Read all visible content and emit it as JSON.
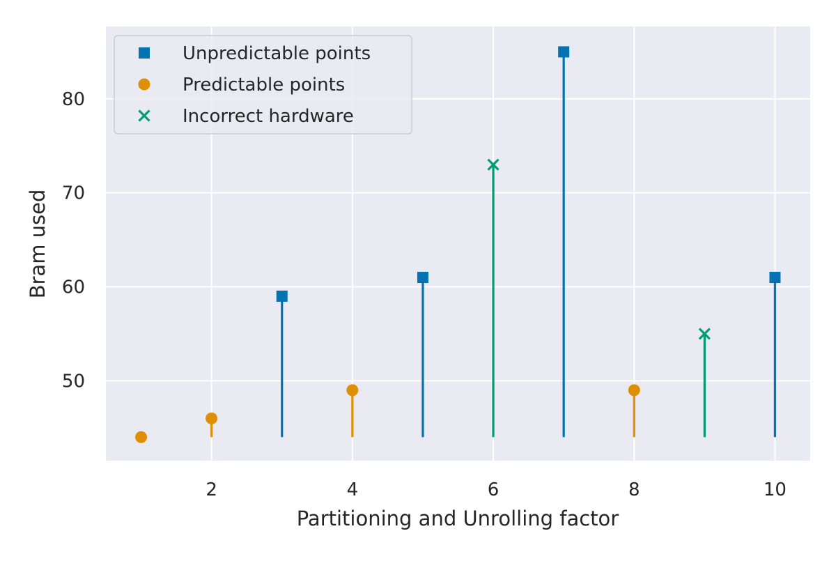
{
  "chart_data": {
    "type": "stem",
    "title": "",
    "xlabel": "Partitioning and Unrolling factor",
    "ylabel": "Bram used",
    "xlim": [
      0.5,
      10.5
    ],
    "ylim": [
      41.5,
      87.7
    ],
    "stem_baseline": 44,
    "xticks": [
      2,
      4,
      6,
      8,
      10
    ],
    "yticks": [
      50,
      60,
      70,
      80
    ],
    "xtick_labels": [
      "2",
      "4",
      "6",
      "8",
      "10"
    ],
    "ytick_labels": [
      "50",
      "60",
      "70",
      "80"
    ],
    "grid": true,
    "legend_position": "top-left",
    "colors": {
      "background": "#eaeaf2",
      "grid": "#ffffff",
      "unpredictable": "#0173b2",
      "predictable": "#de8f05",
      "incorrect": "#029e73"
    },
    "series": [
      {
        "name": "Unpredictable points",
        "marker": "square",
        "color": "#0173b2",
        "points": [
          {
            "x": 3,
            "y": 59
          },
          {
            "x": 5,
            "y": 61
          },
          {
            "x": 7,
            "y": 85
          },
          {
            "x": 10,
            "y": 61
          }
        ]
      },
      {
        "name": "Predictable points",
        "marker": "circle",
        "color": "#de8f05",
        "points": [
          {
            "x": 1,
            "y": 44
          },
          {
            "x": 2,
            "y": 46
          },
          {
            "x": 4,
            "y": 49
          },
          {
            "x": 8,
            "y": 49
          }
        ]
      },
      {
        "name": "Incorrect hardware",
        "marker": "x",
        "color": "#029e73",
        "points": [
          {
            "x": 6,
            "y": 73
          },
          {
            "x": 9,
            "y": 55
          }
        ]
      }
    ]
  }
}
